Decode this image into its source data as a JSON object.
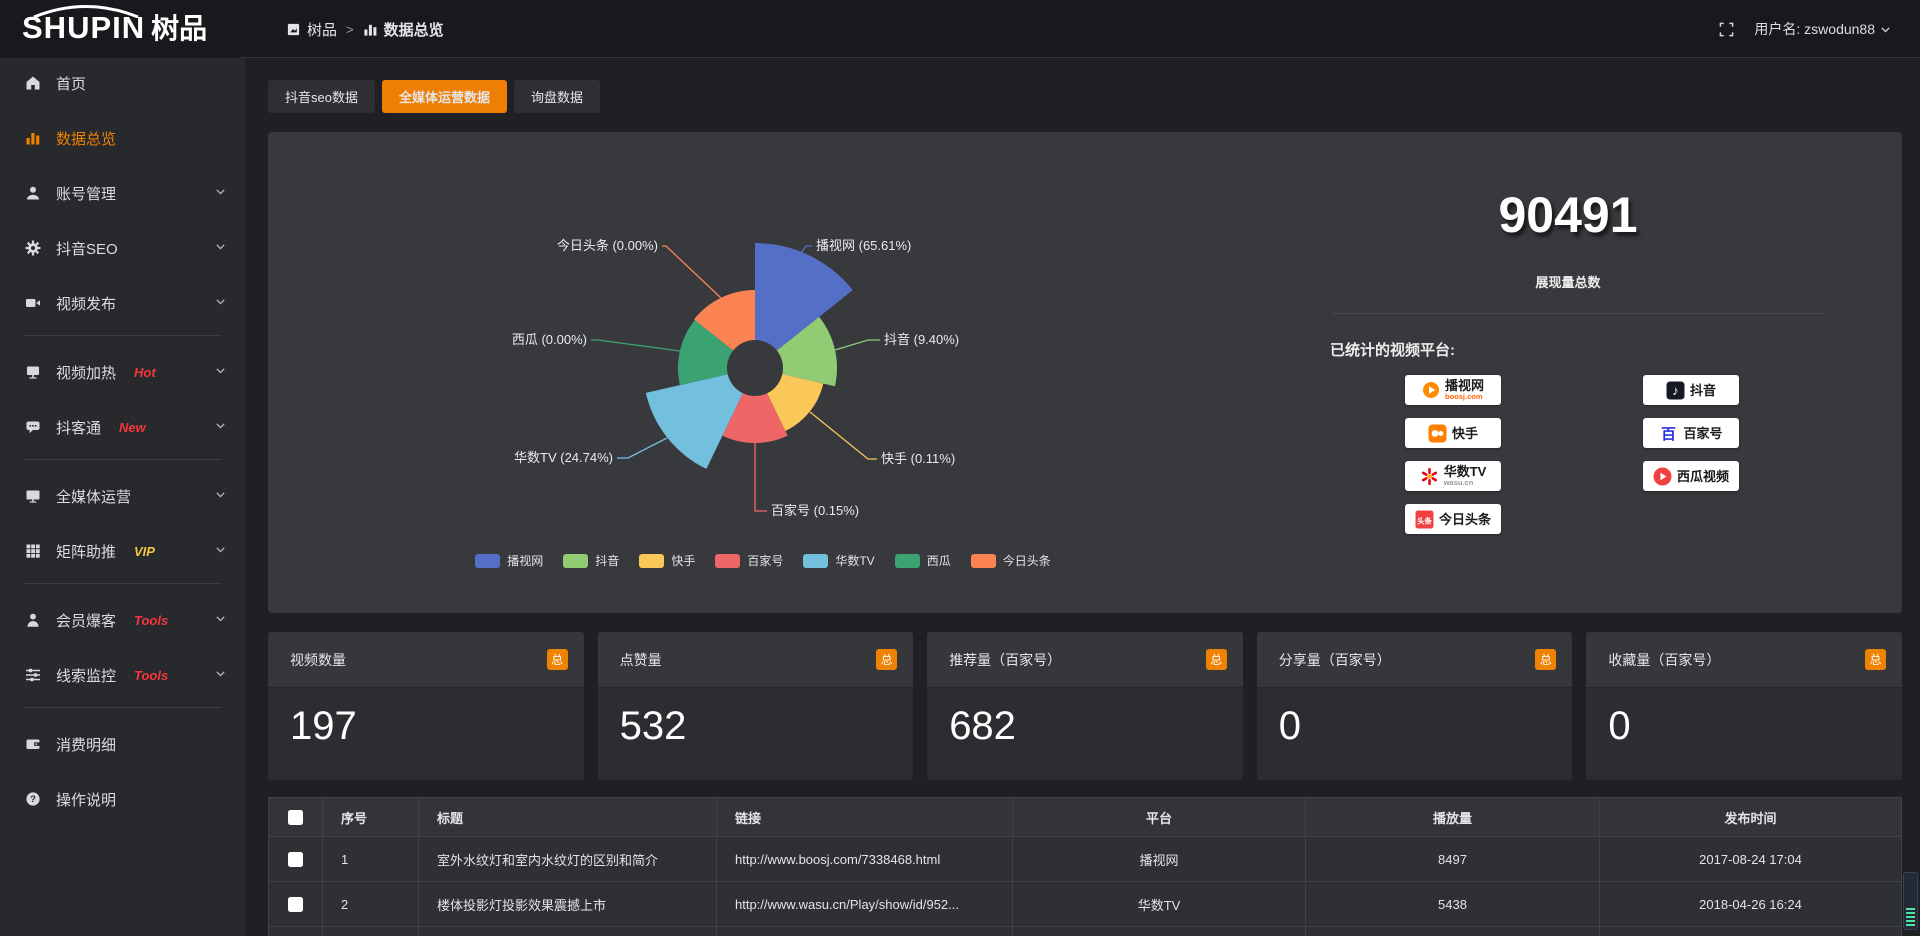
{
  "topbar": {
    "logo_en": "SHUPIN",
    "logo_cn": "树品",
    "breadcrumb": {
      "items": [
        {
          "label": "树品",
          "icon": "app"
        },
        {
          "label": "数据总览",
          "icon": "chart-sm"
        }
      ],
      "separator": ">"
    },
    "user_label": "用户名: zswodun88"
  },
  "sidebar": {
    "items": [
      {
        "label": "首页",
        "icon": "home"
      },
      {
        "label": "数据总览",
        "icon": "chart-bars",
        "active": true
      },
      {
        "label": "账号管理",
        "icon": "user",
        "chevron": true
      },
      {
        "label": "抖音SEO",
        "icon": "gear",
        "chevron": true
      },
      {
        "label": "视频发布",
        "icon": "video-publish",
        "chevron": true
      },
      {
        "divider": true
      },
      {
        "label": "视频加热",
        "icon": "screen",
        "badge": "Hot",
        "badge_color": "#f5373d",
        "chevron": true
      },
      {
        "label": "抖客通",
        "icon": "chat",
        "badge": "New",
        "badge_color": "#f5373d",
        "chevron": true
      },
      {
        "divider": true
      },
      {
        "label": "全媒体运营",
        "icon": "monitor",
        "chevron": true
      },
      {
        "label": "矩阵助推",
        "icon": "grid",
        "badge": "VIP",
        "badge_color": "#f7c53f",
        "chevron": true
      },
      {
        "divider": true
      },
      {
        "label": "会员爆客",
        "icon": "person",
        "badge": "Tools",
        "badge_color": "#f5373d",
        "chevron": true
      },
      {
        "label": "线索监控",
        "icon": "sliders",
        "badge": "Tools",
        "badge_color": "#f5373d",
        "chevron": true
      },
      {
        "divider": true
      },
      {
        "label": "消费明细",
        "icon": "wallet"
      },
      {
        "label": "操作说明",
        "icon": "question"
      }
    ]
  },
  "tabs": [
    {
      "label": "抖音seo数据",
      "active": false
    },
    {
      "label": "全媒体运营数据",
      "active": true
    },
    {
      "label": "询盘数据",
      "active": false
    }
  ],
  "chart_data": {
    "type": "pie",
    "subtype": "nightingale-rose",
    "series": [
      {
        "name": "播视网",
        "percent": "65.61"
      },
      {
        "name": "抖音",
        "percent": "9.40"
      },
      {
        "name": "快手",
        "percent": "0.11"
      },
      {
        "name": "百家号",
        "percent": "0.15"
      },
      {
        "name": "华数TV",
        "percent": "24.74"
      },
      {
        "name": "西瓜",
        "percent": "0.00"
      },
      {
        "name": "今日头条",
        "percent": "0.00"
      }
    ],
    "colors": [
      "#5470c6",
      "#91cc75",
      "#fac858",
      "#ee6666",
      "#73c0de",
      "#3ba272",
      "#fc8452"
    ],
    "label_format": "{name} ({percent}%)",
    "legend": [
      "播视网",
      "抖音",
      "快手",
      "百家号",
      "华数TV",
      "西瓜",
      "今日头条"
    ],
    "legend_position": "bottom",
    "layout": {
      "hole_radius": 28,
      "radii": [
        125,
        82,
        70,
        75,
        112,
        77,
        78
      ],
      "center": [
        487,
        236
      ]
    }
  },
  "total_block": {
    "value": "90491",
    "label": "展现量总数"
  },
  "platforms": {
    "title": "已统计的视频平台:",
    "columns": [
      [
        {
          "name": "播视网",
          "sub": "boosj.com",
          "icon": "boosj"
        },
        {
          "name": "快手",
          "icon": "kuaishou"
        },
        {
          "name": "华数TV",
          "sub": "wasu.cn",
          "icon": "wasu"
        },
        {
          "name": "今日头条",
          "icon": "toutiao"
        }
      ],
      [
        {
          "name": "抖音",
          "icon": "douyin"
        },
        {
          "name": "百家号",
          "icon": "baijiahao"
        },
        {
          "name": "西瓜视频",
          "icon": "xigua"
        }
      ]
    ]
  },
  "stat_cards": [
    {
      "title": "视频数量",
      "badge": "总",
      "value": "197"
    },
    {
      "title": "点赞量",
      "badge": "总",
      "value": "532"
    },
    {
      "title": "推荐量（百家号）",
      "badge": "总",
      "value": "682"
    },
    {
      "title": "分享量（百家号）",
      "badge": "总",
      "value": "0"
    },
    {
      "title": "收藏量（百家号）",
      "badge": "总",
      "value": "0"
    }
  ],
  "table": {
    "headers": [
      "序号",
      "标题",
      "链接",
      "平台",
      "播放量",
      "发布时间"
    ],
    "rows": [
      {
        "index": "1",
        "title": "室外水纹灯和室内水纹灯的区别和简介",
        "link": "http://www.boosj.com/7338468.html",
        "platform": "播视网",
        "plays": "8497",
        "time": "2017-08-24 17:04"
      },
      {
        "index": "2",
        "title": "楼体投影灯投影效果震撼上市",
        "link": "http://www.wasu.cn/Play/show/id/952...",
        "platform": "华数TV",
        "plays": "5438",
        "time": "2018-04-26 16:24"
      }
    ]
  }
}
